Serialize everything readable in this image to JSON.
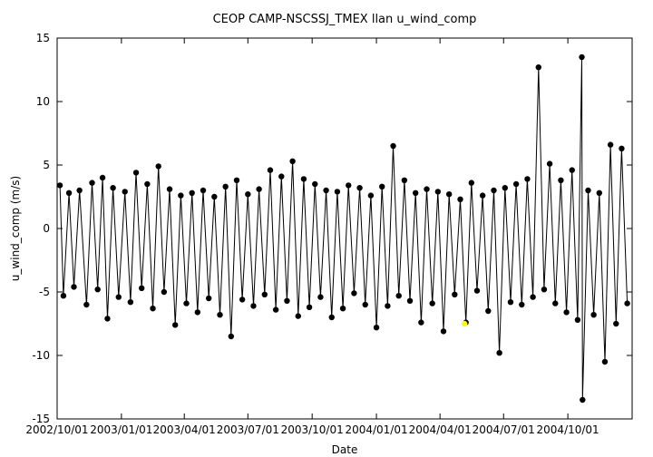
{
  "chart_data": {
    "type": "line",
    "title": "CEOP CAMP-NSCSSJ_TMEX llan  u_wind_comp",
    "xlabel": "Date",
    "ylabel": "u_wind_comp (m/s)",
    "xlim": [
      "2002-10-01",
      "2005-01-01"
    ],
    "ylim": [
      -15,
      15
    ],
    "yticks": [
      -15,
      -10,
      -5,
      0,
      5,
      10,
      15
    ],
    "xticks": [
      {
        "date": "2002-10-01",
        "label": "2002/10/01"
      },
      {
        "date": "2003-01-01",
        "label": "2003/01/01"
      },
      {
        "date": "2003-04-01",
        "label": "2003/04/01"
      },
      {
        "date": "2003-07-01",
        "label": "2003/07/01"
      },
      {
        "date": "2003-10-01",
        "label": "2003/10/01"
      },
      {
        "date": "2004-01-01",
        "label": "2004/01/01"
      },
      {
        "date": "2004-04-01",
        "label": "2004/04/01"
      },
      {
        "date": "2004-07-01",
        "label": "2004/07/01"
      },
      {
        "date": "2004-10-01",
        "label": "2004/10/01"
      }
    ],
    "grid": false,
    "legend": "none",
    "series": [
      {
        "color": "#000000",
        "marker": "circle",
        "points": [
          [
            "2002-10-05",
            3.4
          ],
          [
            "2002-10-10",
            -5.3
          ],
          [
            "2002-10-18",
            2.8
          ],
          [
            "2002-10-25",
            -4.6
          ],
          [
            "2002-11-02",
            3.0
          ],
          [
            "2002-11-12",
            -6.0
          ],
          [
            "2002-11-20",
            3.6
          ],
          [
            "2002-11-28",
            -4.8
          ],
          [
            "2002-12-05",
            4.0
          ],
          [
            "2002-12-12",
            -7.1
          ],
          [
            "2002-12-20",
            3.2
          ],
          [
            "2002-12-28",
            -5.4
          ],
          [
            "2003-01-06",
            2.9
          ],
          [
            "2003-01-14",
            -5.8
          ],
          [
            "2003-01-22",
            4.4
          ],
          [
            "2003-01-30",
            -4.7
          ],
          [
            "2003-02-07",
            3.5
          ],
          [
            "2003-02-15",
            -6.3
          ],
          [
            "2003-02-23",
            4.9
          ],
          [
            "2003-03-03",
            -5.0
          ],
          [
            "2003-03-11",
            3.1
          ],
          [
            "2003-03-19",
            -7.6
          ],
          [
            "2003-03-27",
            2.6
          ],
          [
            "2003-04-04",
            -5.9
          ],
          [
            "2003-04-12",
            2.8
          ],
          [
            "2003-04-20",
            -6.6
          ],
          [
            "2003-04-28",
            3.0
          ],
          [
            "2003-05-06",
            -5.5
          ],
          [
            "2003-05-14",
            2.5
          ],
          [
            "2003-05-22",
            -6.8
          ],
          [
            "2003-05-30",
            3.3
          ],
          [
            "2003-06-07",
            -8.5
          ],
          [
            "2003-06-15",
            3.8
          ],
          [
            "2003-06-23",
            -5.6
          ],
          [
            "2003-07-01",
            2.7
          ],
          [
            "2003-07-09",
            -6.1
          ],
          [
            "2003-07-17",
            3.1
          ],
          [
            "2003-07-25",
            -5.2
          ],
          [
            "2003-08-02",
            4.6
          ],
          [
            "2003-08-10",
            -6.4
          ],
          [
            "2003-08-18",
            4.1
          ],
          [
            "2003-08-26",
            -5.7
          ],
          [
            "2003-09-03",
            5.3
          ],
          [
            "2003-09-11",
            -6.9
          ],
          [
            "2003-09-19",
            3.9
          ],
          [
            "2003-09-27",
            -6.2
          ],
          [
            "2003-10-05",
            3.5
          ],
          [
            "2003-10-13",
            -5.4
          ],
          [
            "2003-10-21",
            3.0
          ],
          [
            "2003-10-29",
            -7.0
          ],
          [
            "2003-11-06",
            2.9
          ],
          [
            "2003-11-14",
            -6.3
          ],
          [
            "2003-11-22",
            3.4
          ],
          [
            "2003-11-30",
            -5.1
          ],
          [
            "2003-12-08",
            3.2
          ],
          [
            "2003-12-16",
            -6.0
          ],
          [
            "2003-12-24",
            2.6
          ],
          [
            "2004-01-01",
            -7.8
          ],
          [
            "2004-01-09",
            3.3
          ],
          [
            "2004-01-17",
            -6.1
          ],
          [
            "2004-01-25",
            6.5
          ],
          [
            "2004-02-02",
            -5.3
          ],
          [
            "2004-02-10",
            3.8
          ],
          [
            "2004-02-18",
            -5.7
          ],
          [
            "2004-02-26",
            2.8
          ],
          [
            "2004-03-05",
            -7.4
          ],
          [
            "2004-03-13",
            3.1
          ],
          [
            "2004-03-21",
            -5.9
          ],
          [
            "2004-03-29",
            2.9
          ],
          [
            "2004-04-06",
            -8.1
          ],
          [
            "2004-04-14",
            2.7
          ],
          [
            "2004-04-22",
            -5.2
          ],
          [
            "2004-04-30",
            2.3
          ],
          [
            "2004-05-08",
            -7.4
          ],
          [
            "2004-05-16",
            3.6
          ],
          [
            "2004-05-24",
            -4.9
          ],
          [
            "2004-06-01",
            2.6
          ],
          [
            "2004-06-09",
            -6.5
          ],
          [
            "2004-06-17",
            3.0
          ],
          [
            "2004-06-25",
            -9.8
          ],
          [
            "2004-07-03",
            3.2
          ],
          [
            "2004-07-11",
            -5.8
          ],
          [
            "2004-07-19",
            3.5
          ],
          [
            "2004-07-27",
            -6.0
          ],
          [
            "2004-08-04",
            3.9
          ],
          [
            "2004-08-12",
            -5.4
          ],
          [
            "2004-08-20",
            12.7
          ],
          [
            "2004-08-28",
            -4.8
          ],
          [
            "2004-09-05",
            5.1
          ],
          [
            "2004-09-13",
            -5.9
          ],
          [
            "2004-09-21",
            3.8
          ],
          [
            "2004-09-29",
            -6.6
          ],
          [
            "2004-10-07",
            4.6
          ],
          [
            "2004-10-15",
            -7.2
          ],
          [
            "2004-10-21",
            13.5
          ],
          [
            "2004-10-22",
            -13.5
          ],
          [
            "2004-10-30",
            3.0
          ],
          [
            "2004-11-07",
            -6.8
          ],
          [
            "2004-11-15",
            2.8
          ],
          [
            "2004-11-23",
            -10.5
          ],
          [
            "2004-12-01",
            6.6
          ],
          [
            "2004-12-09",
            -7.5
          ],
          [
            "2004-12-17",
            6.3
          ],
          [
            "2004-12-25",
            -5.9
          ]
        ]
      },
      {
        "color": "#ffff00",
        "marker": "circle",
        "points": [
          [
            "2004-05-06",
            -7.5
          ]
        ]
      }
    ]
  }
}
